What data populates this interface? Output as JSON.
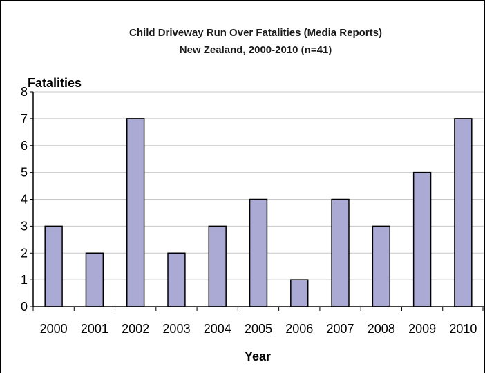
{
  "chart_data": {
    "type": "bar",
    "title_lines": [
      "Child Driveway Run Over Fatalities (Media Reports)",
      "New Zealand, 2000-2010 (n=41)"
    ],
    "xlabel": "Year",
    "ylabel": "Fatalities",
    "categories": [
      "2000",
      "2001",
      "2002",
      "2003",
      "2004",
      "2005",
      "2006",
      "2007",
      "2008",
      "2009",
      "2010"
    ],
    "values": [
      3,
      2,
      7,
      2,
      3,
      4,
      1,
      4,
      3,
      5,
      7
    ],
    "ylim": [
      0,
      8
    ],
    "yticks": [
      "0",
      "1",
      "2",
      "3",
      "4",
      "5",
      "6",
      "7",
      "8"
    ],
    "grid": true,
    "legend": "none",
    "colors": {
      "bar_fill": "#aaaad5",
      "bar_stroke": "#000000",
      "grid": "#c8c8c8",
      "axis": "#000000"
    }
  }
}
